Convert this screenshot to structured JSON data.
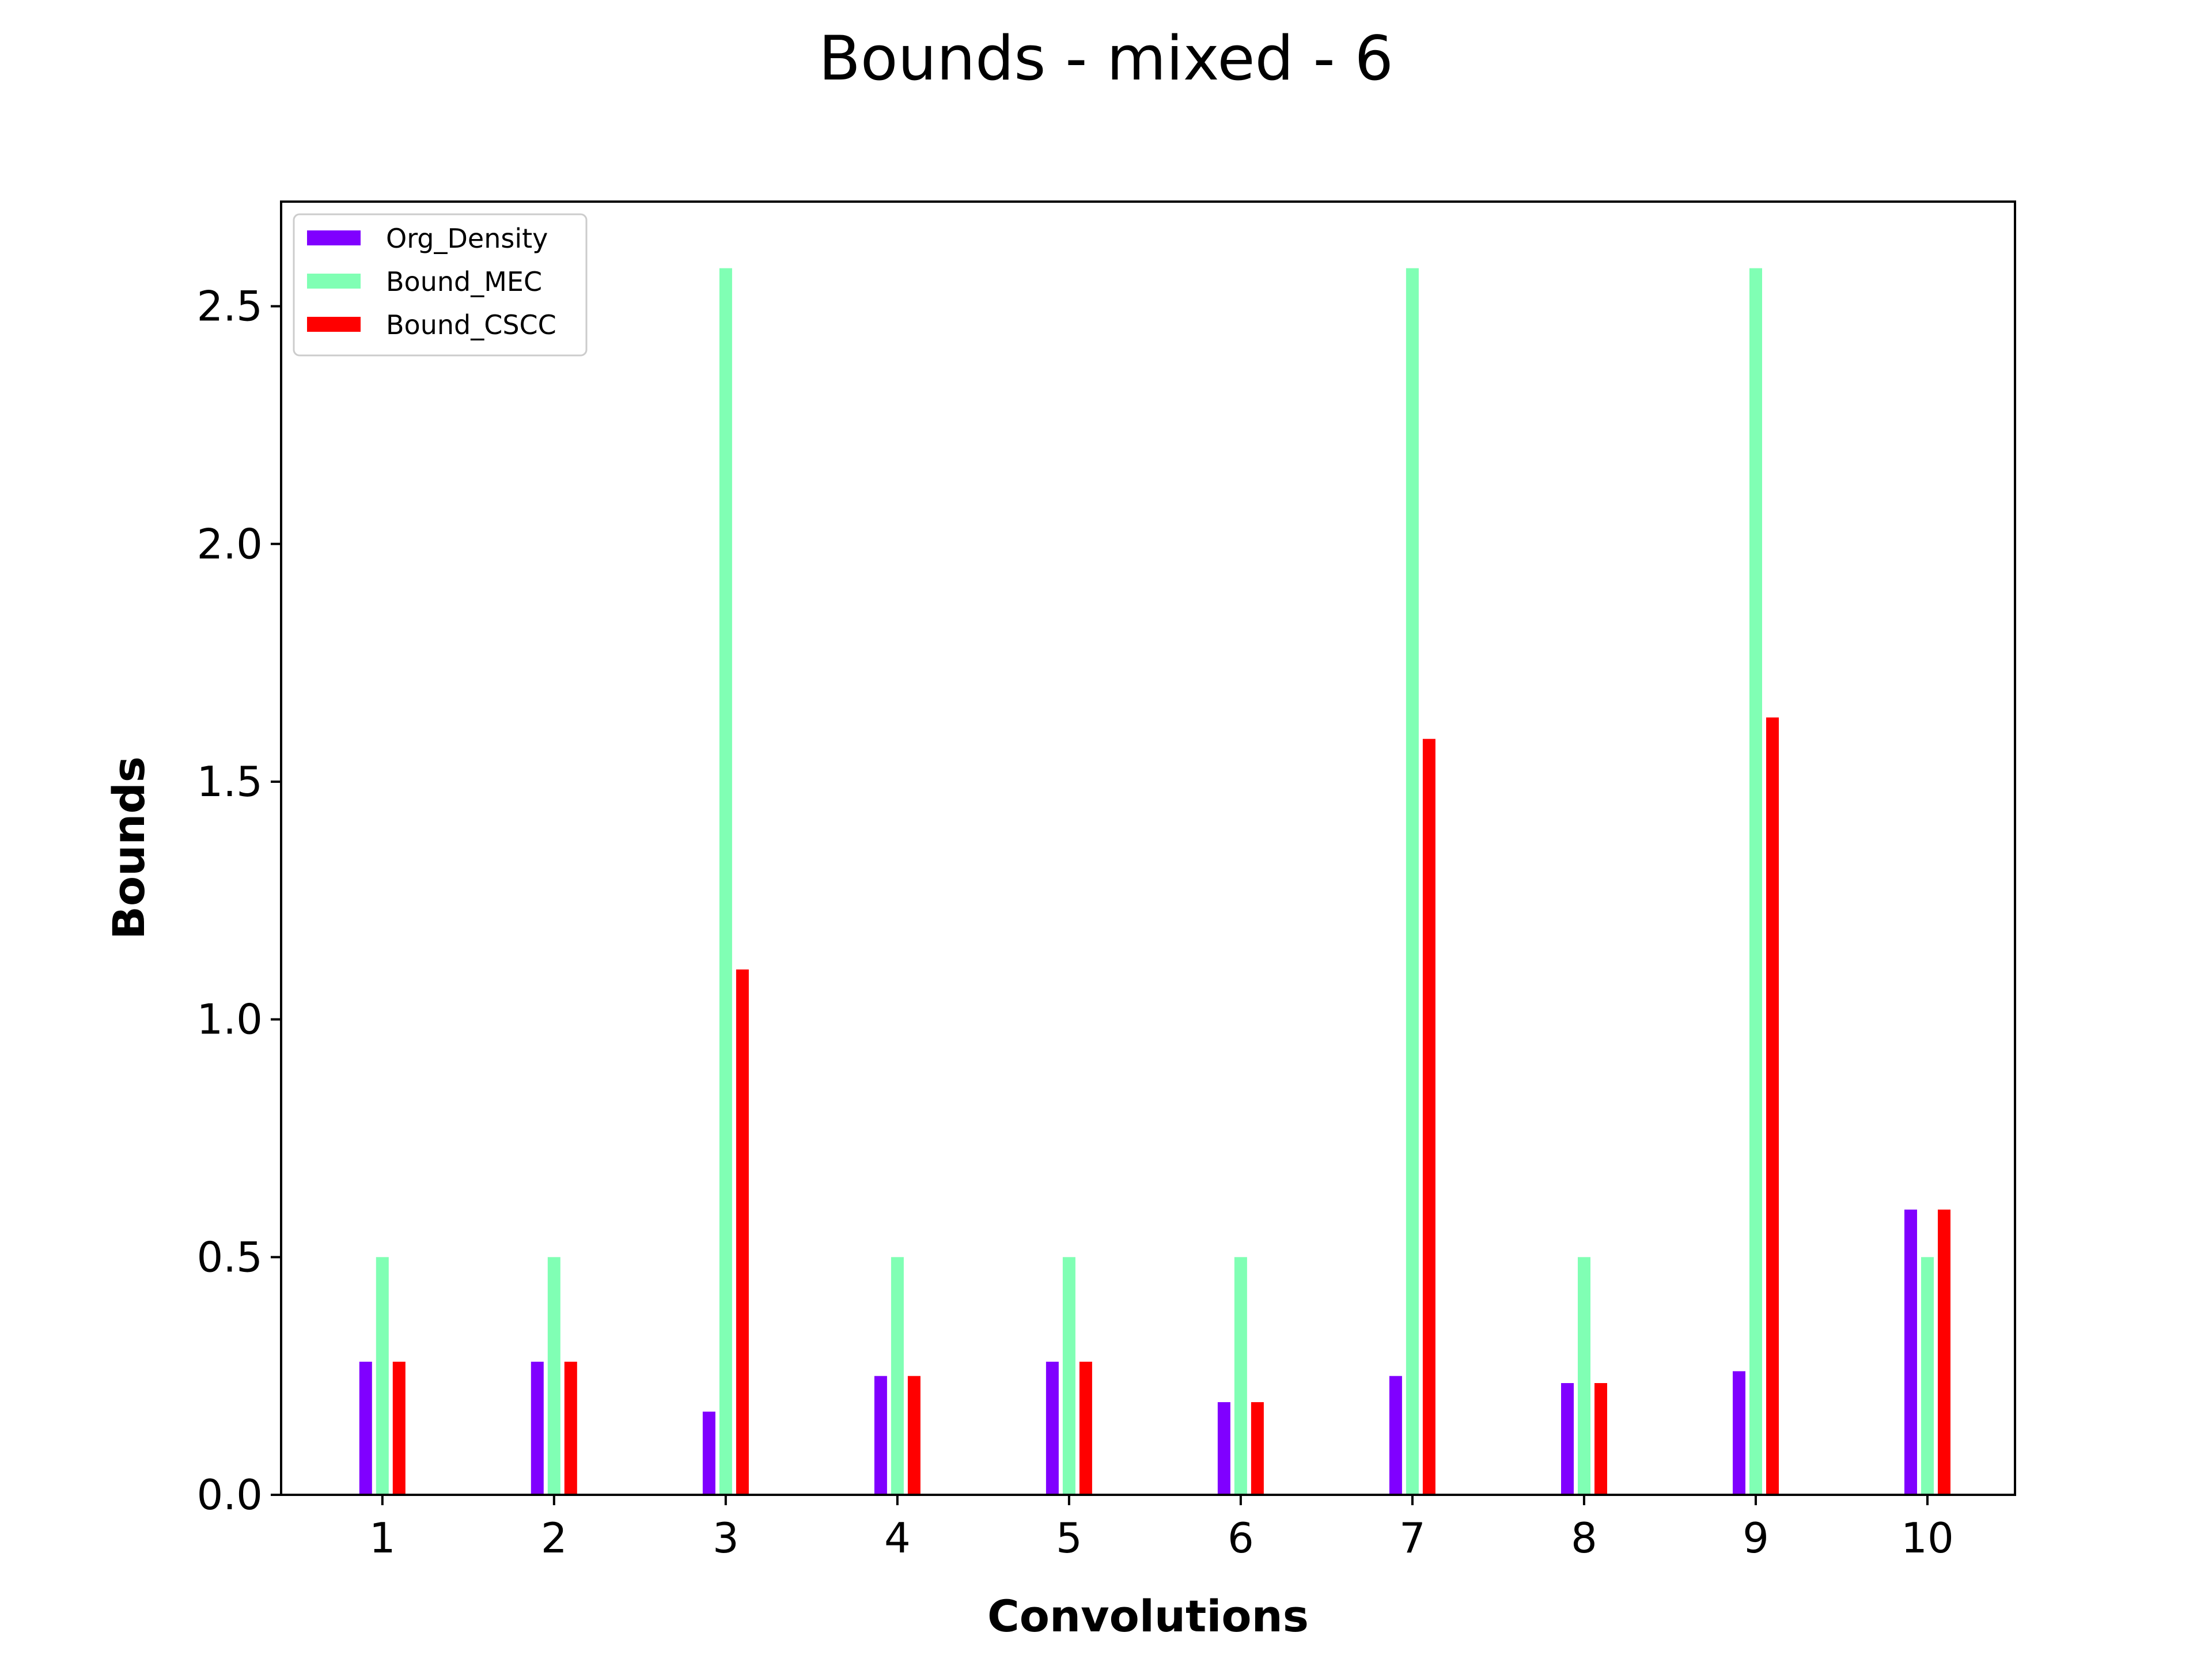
{
  "chart_data": {
    "type": "bar",
    "title": "Bounds - mixed - 6",
    "xlabel": "Convolutions",
    "ylabel": "Bounds",
    "categories": [
      "1",
      "2",
      "3",
      "4",
      "5",
      "6",
      "7",
      "8",
      "9",
      "10"
    ],
    "ylim": [
      0,
      2.72
    ],
    "yticks": [
      "0.0",
      "0.5",
      "1.0",
      "1.5",
      "2.0",
      "2.5"
    ],
    "grid": false,
    "legend_position": "upper-left",
    "series": [
      {
        "name": "Org_Density",
        "color": "#8000ff",
        "values": [
          0.28,
          0.28,
          0.175,
          0.25,
          0.28,
          0.195,
          0.25,
          0.235,
          0.26,
          0.6
        ]
      },
      {
        "name": "Bound_MEC",
        "color": "#80ffb4",
        "values": [
          0.5,
          0.5,
          2.58,
          0.5,
          0.5,
          0.5,
          2.58,
          0.5,
          2.58,
          0.5
        ]
      },
      {
        "name": "Bound_CSCC",
        "color": "#ff0000",
        "values": [
          0.28,
          0.28,
          1.105,
          0.25,
          0.28,
          0.195,
          1.59,
          0.235,
          1.635,
          0.6
        ]
      }
    ]
  }
}
